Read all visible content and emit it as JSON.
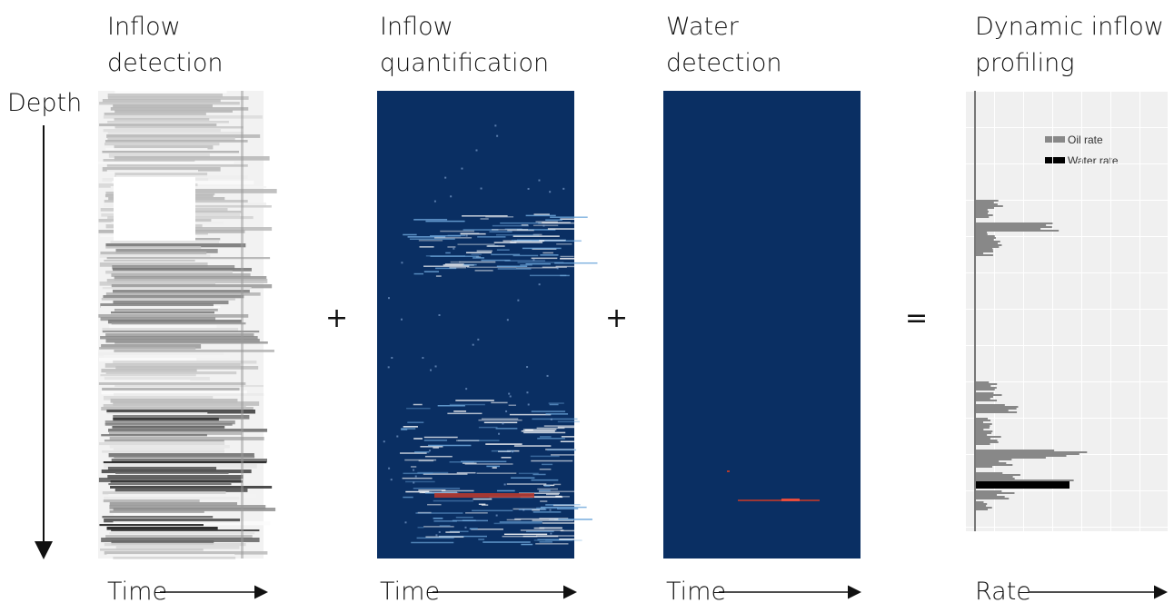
{
  "depth_label": "Depth",
  "panels": [
    {
      "title": [
        "Inflow",
        "detection"
      ],
      "axis_label": "Time"
    },
    {
      "title": [
        "Inflow",
        "quantification"
      ],
      "axis_label": "Time"
    },
    {
      "title": [
        "Water",
        "detection"
      ],
      "axis_label": "Time"
    },
    {
      "title": [
        "Dynamic inflow",
        "profiling"
      ],
      "axis_label": "Rate"
    }
  ],
  "operators": [
    "+",
    "+",
    "="
  ],
  "legend": [
    "Oil rate",
    "Water rate"
  ]
}
